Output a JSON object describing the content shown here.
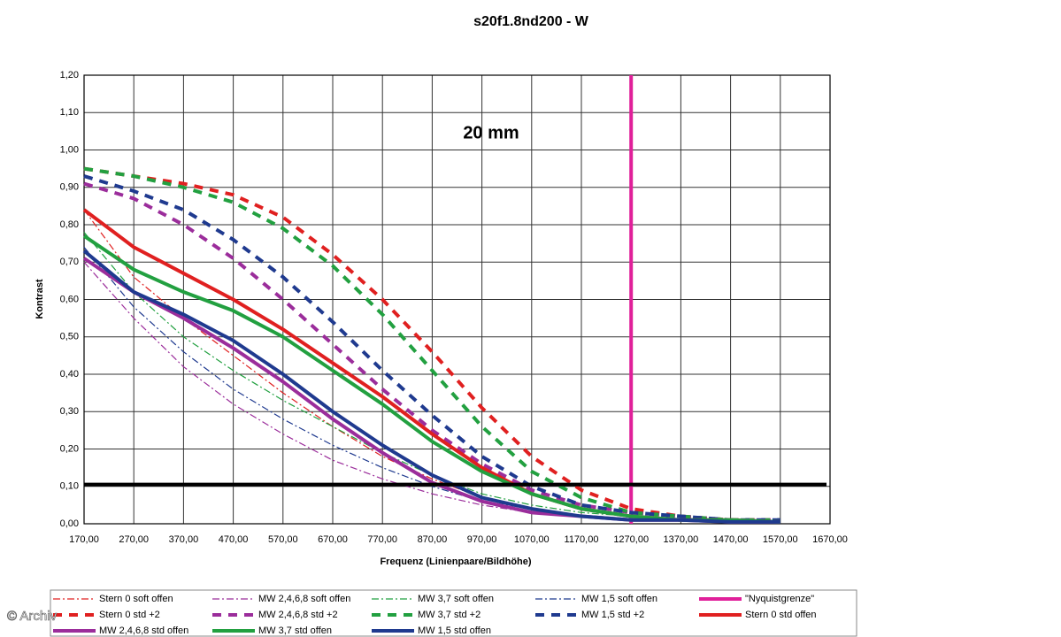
{
  "chart_data": {
    "type": "line",
    "title": "s20f1.8nd200 - W",
    "annotation": "20 mm",
    "watermark": "© Archiv",
    "x_label": "Frequenz (Linienpaare/Bildhöhe)",
    "y_label": "Kontrast",
    "grid": true,
    "legend": "bottom",
    "xlim": [
      170,
      1670
    ],
    "ylim": [
      0,
      1.2
    ],
    "xticks": [
      {
        "value": 170,
        "label": "170,00"
      },
      {
        "value": 270,
        "label": "270,00"
      },
      {
        "value": 370,
        "label": "370,00"
      },
      {
        "value": 470,
        "label": "470,00"
      },
      {
        "value": 570,
        "label": "570,00"
      },
      {
        "value": 670,
        "label": "670,00"
      },
      {
        "value": 770,
        "label": "770,00"
      },
      {
        "value": 870,
        "label": "870,00"
      },
      {
        "value": 970,
        "label": "970,00"
      },
      {
        "value": 1070,
        "label": "1070,00"
      },
      {
        "value": 1170,
        "label": "1170,00"
      },
      {
        "value": 1270,
        "label": "1270,00"
      },
      {
        "value": 1370,
        "label": "1370,00"
      },
      {
        "value": 1470,
        "label": "1470,00"
      },
      {
        "value": 1570,
        "label": "1570,00"
      },
      {
        "value": 1670,
        "label": "1670,00"
      }
    ],
    "yticks": [
      {
        "value": 0,
        "label": "0,00"
      },
      {
        "value": 0.1,
        "label": "0,10"
      },
      {
        "value": 0.2,
        "label": "0,20"
      },
      {
        "value": 0.3,
        "label": "0,30"
      },
      {
        "value": 0.4,
        "label": "0,40"
      },
      {
        "value": 0.5,
        "label": "0,50"
      },
      {
        "value": 0.6,
        "label": "0,60"
      },
      {
        "value": 0.7,
        "label": "0,70"
      },
      {
        "value": 0.8,
        "label": "0,80"
      },
      {
        "value": 0.9,
        "label": "0,90"
      },
      {
        "value": 1,
        "label": "1,00"
      },
      {
        "value": 1.1,
        "label": "1,10"
      },
      {
        "value": 1.2,
        "label": "1,20"
      }
    ],
    "reference_y": 0.105,
    "x": [
      170,
      270,
      370,
      470,
      570,
      670,
      770,
      870,
      970,
      1070,
      1170,
      1270,
      1370,
      1470,
      1570
    ],
    "series": [
      {
        "name": "Stern 0 soft offen",
        "color": "#e02020",
        "style": "dashdot",
        "values": [
          0.84,
          0.66,
          0.55,
          0.45,
          0.35,
          0.26,
          0.18,
          0.12,
          0.07,
          0.04,
          0.02,
          0.01,
          0.01,
          0.005,
          0.005
        ]
      },
      {
        "name": "MW 2,4,6,8 soft offen",
        "color": "#9b2d9b",
        "style": "dashdot",
        "values": [
          0.7,
          0.55,
          0.42,
          0.32,
          0.24,
          0.17,
          0.12,
          0.08,
          0.05,
          0.03,
          0.02,
          0.01,
          0.01,
          0.005,
          0.005
        ]
      },
      {
        "name": "MW 3,7 soft offen",
        "color": "#22a040",
        "style": "dashdot",
        "values": [
          0.78,
          0.62,
          0.5,
          0.41,
          0.33,
          0.26,
          0.19,
          0.13,
          0.08,
          0.05,
          0.03,
          0.02,
          0.01,
          0.01,
          0.005
        ]
      },
      {
        "name": "MW 1,5 soft offen",
        "color": "#1f3a8f",
        "style": "dashdot",
        "values": [
          0.74,
          0.58,
          0.46,
          0.36,
          0.28,
          0.21,
          0.15,
          0.1,
          0.06,
          0.04,
          0.02,
          0.01,
          0.01,
          0.005,
          0.005
        ]
      },
      {
        "name": "\"Nyquistgrenze\"",
        "color": "#e0209a",
        "style": "solid",
        "x": [
          1270,
          1270
        ],
        "values": [
          0,
          1.2
        ]
      },
      {
        "name": "Stern 0 std +2",
        "color": "#e02020",
        "style": "dashed",
        "values": [
          0.95,
          0.93,
          0.91,
          0.88,
          0.82,
          0.72,
          0.6,
          0.46,
          0.31,
          0.18,
          0.09,
          0.04,
          0.02,
          0.01,
          0.01
        ]
      },
      {
        "name": "MW 2,4,6,8 std +2",
        "color": "#9b2d9b",
        "style": "dashed",
        "values": [
          0.91,
          0.87,
          0.8,
          0.71,
          0.6,
          0.48,
          0.36,
          0.25,
          0.16,
          0.09,
          0.05,
          0.03,
          0.02,
          0.01,
          0.01
        ]
      },
      {
        "name": "MW 3,7 std +2",
        "color": "#22a040",
        "style": "dashed",
        "values": [
          0.95,
          0.93,
          0.9,
          0.86,
          0.79,
          0.69,
          0.56,
          0.41,
          0.26,
          0.14,
          0.07,
          0.03,
          0.02,
          0.01,
          0.01
        ]
      },
      {
        "name": "MW 1,5 std +2",
        "color": "#1f3a8f",
        "style": "dashed",
        "values": [
          0.93,
          0.89,
          0.84,
          0.76,
          0.66,
          0.54,
          0.41,
          0.29,
          0.18,
          0.1,
          0.05,
          0.03,
          0.02,
          0.01,
          0.01
        ]
      },
      {
        "name": "Stern 0 std offen",
        "color": "#e02020",
        "style": "solid",
        "values": [
          0.84,
          0.74,
          0.67,
          0.6,
          0.52,
          0.43,
          0.34,
          0.24,
          0.15,
          0.08,
          0.04,
          0.02,
          0.01,
          0.01,
          0.005
        ]
      },
      {
        "name": "MW 2,4,6,8 std offen",
        "color": "#9b2d9b",
        "style": "solid",
        "values": [
          0.71,
          0.62,
          0.55,
          0.47,
          0.38,
          0.28,
          0.19,
          0.11,
          0.06,
          0.03,
          0.02,
          0.01,
          0.01,
          0.005,
          0.005
        ]
      },
      {
        "name": "MW 3,7 std offen",
        "color": "#22a040",
        "style": "solid",
        "values": [
          0.77,
          0.68,
          0.62,
          0.57,
          0.5,
          0.41,
          0.32,
          0.22,
          0.14,
          0.08,
          0.04,
          0.02,
          0.01,
          0.01,
          0.005
        ]
      },
      {
        "name": "MW 1,5 std offen",
        "color": "#1f3a8f",
        "style": "solid",
        "values": [
          0.73,
          0.62,
          0.56,
          0.49,
          0.4,
          0.3,
          0.21,
          0.13,
          0.07,
          0.04,
          0.02,
          0.01,
          0.01,
          0.005,
          0.005
        ]
      }
    ]
  }
}
